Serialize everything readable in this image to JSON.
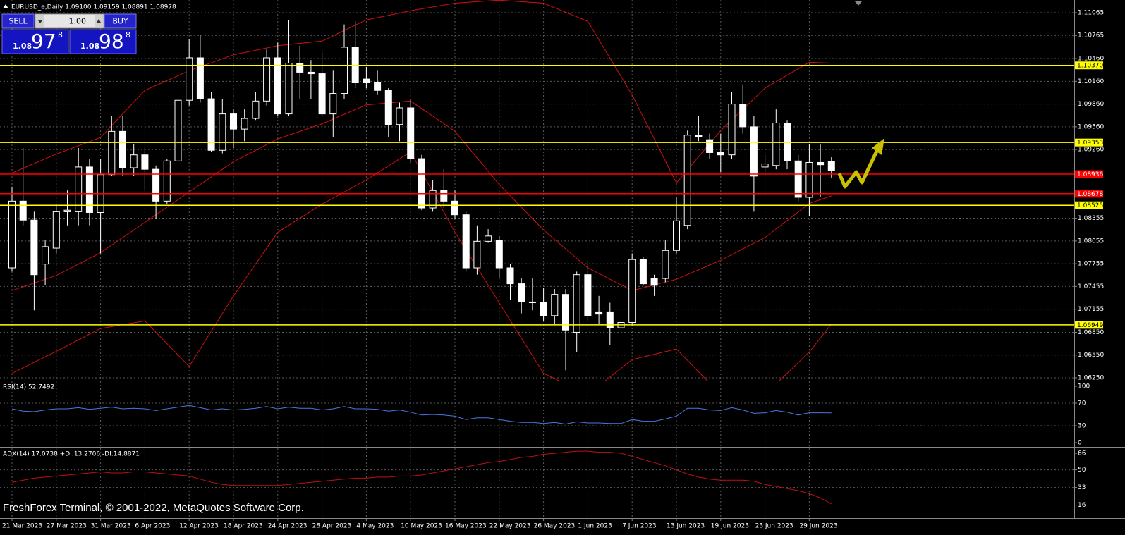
{
  "header": "EURUSD_e,Daily  1.09100 1.09159 1.08891 1.08978",
  "trade_panel": {
    "sell": "SELL",
    "buy": "BUY",
    "lot": "1.00",
    "bid": {
      "big_figure": "1.08",
      "pips": "97",
      "fraction": "8"
    },
    "ask": {
      "big_figure": "1.08",
      "pips": "98",
      "fraction": "8"
    }
  },
  "footer": "FreshForex Terminal, © 2001-2022, MetaQuotes Software Corp.",
  "chart_data": [
    {
      "type": "candlestick",
      "categories": [
        "21 Mar 2023",
        null,
        null,
        null,
        "27 Mar 2023",
        null,
        null,
        null,
        "31 Mar 2023",
        null,
        null,
        null,
        "6 Apr 2023",
        null,
        null,
        null,
        "12 Apr 2023",
        null,
        null,
        null,
        "18 Apr 2023",
        null,
        null,
        null,
        "24 Apr 2023",
        null,
        null,
        null,
        "28 Apr 2023",
        null,
        null,
        null,
        "4 May 2023",
        null,
        null,
        null,
        "10 May 2023",
        null,
        null,
        null,
        "16 May 2023",
        null,
        null,
        null,
        "22 May 2023",
        null,
        null,
        null,
        "26 May 2023",
        null,
        null,
        null,
        "1 Jun 2023",
        null,
        null,
        null,
        "7 Jun 2023",
        null,
        null,
        null,
        "13 Jun 2023",
        null,
        null,
        null,
        "19 Jun 2023",
        null,
        null,
        null,
        "23 Jun 2023",
        null,
        null,
        null,
        "29 Jun 2023",
        null,
        null
      ],
      "open": [
        1.077,
        1.0858,
        1.0833,
        1.0775,
        1.0796,
        1.0844,
        1.0844,
        1.0903,
        1.0843,
        1.0893,
        1.095,
        1.0902,
        1.0919,
        1.09,
        1.0858,
        1.0911,
        1.0991,
        1.1047,
        1.0993,
        1.0925,
        1.0973,
        1.0953,
        1.0967,
        1.099,
        1.1047,
        1.0973,
        1.104,
        1.1028,
        1.1026,
        1.0973,
        1.1,
        1.1061,
        1.1019,
        1.1014,
        1.1004,
        1.0959,
        1.0981,
        1.0914,
        1.0849,
        1.0872,
        1.0858,
        1.084,
        1.077,
        1.0805,
        1.0806,
        1.077,
        1.0749,
        1.0725,
        1.0724,
        1.0707,
        1.0735,
        1.0685,
        1.0761,
        1.0712,
        1.0712,
        1.0691,
        1.0698,
        1.0781,
        1.0756,
        1.0756,
        1.0793,
        1.0826,
        1.0945,
        1.0939,
        1.0922,
        1.0919,
        1.0986,
        1.0956,
        1.0903,
        1.0905,
        1.0961,
        1.0911,
        1.0863,
        1.0909,
        1.091
      ],
      "high": [
        1.0877,
        1.0928,
        1.0844,
        1.0807,
        1.0854,
        1.0872,
        1.0928,
        1.0914,
        1.0914,
        1.097,
        1.097,
        1.0933,
        1.0928,
        1.0905,
        1.0914,
        1.0998,
        1.1072,
        1.1077,
        1.1002,
        1.0993,
        1.0979,
        1.0979,
        1.1002,
        1.1058,
        1.1067,
        1.1097,
        1.1063,
        1.1044,
        1.1054,
        1.103,
        1.1091,
        1.1095,
        1.1035,
        1.103,
        1.1007,
        1.0988,
        1.0993,
        1.0919,
        1.0886,
        1.09,
        1.0872,
        1.0844,
        1.0826,
        1.0821,
        1.0812,
        1.0775,
        1.0756,
        1.0756,
        1.0744,
        1.0742,
        1.0742,
        1.0765,
        1.0779,
        1.0733,
        1.0724,
        1.0714,
        1.0789,
        1.0784,
        1.0761,
        1.0807,
        1.0863,
        1.0951,
        1.097,
        1.0947,
        1.0947,
        1.1002,
        1.1012,
        1.097,
        1.0919,
        1.0979,
        1.0965,
        1.0919,
        1.0933,
        1.0933,
        1.09159
      ],
      "low": [
        1.0765,
        1.0826,
        1.0714,
        1.0747,
        1.0789,
        1.0826,
        1.0826,
        1.0826,
        1.0789,
        1.0891,
        1.0891,
        1.0891,
        1.0872,
        1.0835,
        1.0854,
        1.0908,
        1.0984,
        1.0988,
        1.0923,
        1.0921,
        1.0928,
        1.0937,
        1.0965,
        1.0984,
        1.097,
        1.097,
        1.0993,
        1.0993,
        1.097,
        1.0942,
        1.0993,
        1.1007,
        1.1007,
        1.0998,
        1.0942,
        1.0937,
        1.0909,
        1.0846,
        1.0844,
        1.0849,
        1.0835,
        1.0765,
        1.0761,
        1.0803,
        1.0756,
        1.0728,
        1.071,
        1.0714,
        1.07,
        1.0696,
        1.0635,
        1.0659,
        1.07,
        1.0696,
        1.0668,
        1.0668,
        1.0694,
        1.0747,
        1.0733,
        1.0751,
        1.0789,
        1.0821,
        1.0937,
        1.0914,
        1.0896,
        1.0914,
        1.0947,
        1.0844,
        1.0891,
        1.09,
        1.09,
        1.0858,
        1.0838,
        1.0863,
        1.08891
      ],
      "close": [
        1.0858,
        1.0833,
        1.0761,
        1.0798,
        1.0844,
        1.0846,
        1.0903,
        1.0843,
        1.0893,
        1.095,
        1.0902,
        1.0919,
        1.09,
        1.0858,
        1.0911,
        1.0991,
        1.1047,
        1.0993,
        1.0925,
        1.0973,
        1.0953,
        1.0967,
        1.099,
        1.1047,
        1.0973,
        1.104,
        1.1028,
        1.1026,
        1.0973,
        1.1,
        1.1061,
        1.1014,
        1.1014,
        1.1004,
        1.0959,
        1.0981,
        1.0914,
        1.0849,
        1.0872,
        1.0858,
        1.084,
        1.077,
        1.0805,
        1.0812,
        1.077,
        1.0749,
        1.0725,
        1.0724,
        1.0707,
        1.0735,
        1.0688,
        1.0761,
        1.0707,
        1.0709,
        1.0691,
        1.0698,
        1.0781,
        1.0749,
        1.0747,
        1.0793,
        1.0832,
        1.0945,
        1.0943,
        1.0922,
        1.0919,
        1.0986,
        1.0956,
        1.0891,
        1.0907,
        1.0961,
        1.0911,
        1.0863,
        1.0909,
        1.0906,
        1.08978
      ],
      "colors": {
        "up": "#000000",
        "down": "#ffffff",
        "wick": "#ffffff"
      },
      "bands": {
        "color": "#d01010",
        "x": [
          0,
          4,
          8,
          12,
          16,
          20,
          24,
          28,
          32,
          36,
          40,
          44,
          48,
          52,
          56,
          60,
          64,
          68,
          72,
          74
        ],
        "upper": [
          1.0895,
          1.092,
          1.0942,
          1.1004,
          1.103,
          1.1051,
          1.1063,
          1.1069,
          1.1097,
          1.1109,
          1.1119,
          1.1123,
          1.1119,
          1.1095,
          1.0998,
          1.0882,
          1.0951,
          1.1007,
          1.1041,
          1.104
        ],
        "middle": [
          1.074,
          1.076,
          1.079,
          1.083,
          1.087,
          1.091,
          1.094,
          1.096,
          1.0985,
          1.099,
          1.095,
          1.088,
          1.082,
          1.077,
          1.074,
          1.0755,
          1.078,
          1.081,
          1.0855,
          1.0865
        ],
        "lower": [
          1.0631,
          1.066,
          1.069,
          1.07,
          1.064,
          1.0733,
          1.0817,
          1.0854,
          1.0886,
          1.0923,
          1.0817,
          1.0724,
          1.0631,
          1.0603,
          1.0649,
          1.0663,
          1.0603,
          1.0603,
          1.0659,
          1.0696
        ]
      },
      "levels": [
        {
          "value": 1.1037,
          "label": "1.10370",
          "color": "#ffff00"
        },
        {
          "value": 1.09353,
          "label": "1.09353",
          "color": "#ffff00"
        },
        {
          "value": 1.08936,
          "label": "1.08936",
          "color": "#ff0000"
        },
        {
          "value": 1.08678,
          "label": "1.08678",
          "color": "#ff0000"
        },
        {
          "value": 1.08525,
          "label": "1.08525",
          "color": "#ffff00"
        },
        {
          "value": 1.06949,
          "label": "1.06949",
          "color": "#ffff00"
        }
      ],
      "ylim": [
        1.06213,
        1.11232
      ],
      "yticks": [
        {
          "value": 1.11065,
          "label": "1.11065"
        },
        {
          "value": 1.10765,
          "label": "1.10765"
        },
        {
          "value": 1.1046,
          "label": "1.10460"
        },
        {
          "value": 1.1016,
          "label": "1.10160"
        },
        {
          "value": 1.0986,
          "label": "1.09860"
        },
        {
          "value": 1.0956,
          "label": "1.09560"
        },
        {
          "value": 1.0926,
          "label": "1.09260"
        },
        {
          "value": 1.08355,
          "label": "1.08355"
        },
        {
          "value": 1.08055,
          "label": "1.08055"
        },
        {
          "value": 1.07755,
          "label": "1.07755"
        },
        {
          "value": 1.07455,
          "label": "1.07455"
        },
        {
          "value": 1.07155,
          "label": "1.07155"
        },
        {
          "value": 1.0685,
          "label": "1.06850"
        },
        {
          "value": 1.0655,
          "label": "1.06550"
        },
        {
          "value": 1.0625,
          "label": "1.06250"
        }
      ],
      "grid": true
    },
    {
      "type": "line",
      "title": "RSI(14) 52.7492",
      "color": "#4a78e0",
      "values": [
        60,
        56,
        55,
        58,
        60,
        60,
        62,
        59,
        61,
        63,
        60,
        61,
        60,
        57,
        60,
        63,
        66,
        62,
        58,
        60,
        58,
        59,
        61,
        64,
        60,
        63,
        61,
        61,
        58,
        60,
        64,
        60,
        60,
        59,
        56,
        58,
        54,
        49,
        50,
        49,
        47,
        41,
        44,
        44,
        41,
        38,
        36,
        36,
        34,
        36,
        33,
        37,
        35,
        35,
        34,
        34,
        41,
        38,
        38,
        42,
        47,
        61,
        61,
        58,
        57,
        62,
        58,
        52,
        53,
        57,
        54,
        49,
        53,
        53,
        52.7492
      ],
      "ylim": [
        -7.5,
        108.75
      ],
      "yticks": [
        100,
        70,
        30,
        0
      ],
      "gridlines": [
        70,
        30
      ]
    },
    {
      "type": "line",
      "title": "ADX(14) 17.0738 +DI:13.2706 -DI:14.8871",
      "color": "#c01010",
      "values": [
        38,
        40,
        42,
        43,
        44,
        45,
        46,
        47,
        48,
        47,
        47,
        48,
        48,
        47,
        46,
        45,
        44,
        41,
        38,
        36,
        35,
        35,
        35,
        35,
        35,
        36,
        37,
        38,
        39,
        40,
        41,
        42,
        42,
        43,
        43,
        44,
        44,
        45,
        47,
        49,
        51,
        53,
        55,
        57,
        58,
        60,
        62,
        63,
        65,
        66,
        67,
        68,
        68,
        67,
        67,
        66,
        63,
        60,
        57,
        54,
        50,
        46,
        43,
        41,
        40,
        40,
        40,
        39,
        36,
        34,
        32,
        30,
        27,
        23,
        17.0738
      ],
      "ylim": [
        3.5,
        70.8
      ],
      "yticks": [
        66,
        50,
        33,
        16
      ],
      "gridlines": [
        50,
        33
      ]
    }
  ]
}
